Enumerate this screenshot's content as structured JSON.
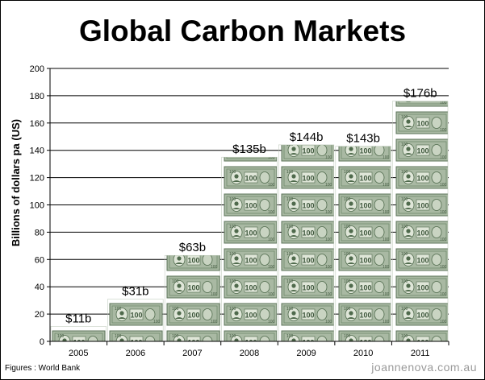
{
  "chart_data": {
    "type": "bar",
    "title": "Global Carbon Markets",
    "ylabel": "Billions of dollars pa (US)",
    "xlabel": "",
    "categories": [
      "2005",
      "2006",
      "2007",
      "2008",
      "2009",
      "2010",
      "2011"
    ],
    "values": [
      11,
      31,
      63,
      135,
      144,
      143,
      176
    ],
    "data_labels": [
      "$11b",
      "$31b",
      "$63b",
      "$135b",
      "$144b",
      "$143b",
      "$176b"
    ],
    "ylim": [
      0,
      200
    ],
    "yticks": [
      0,
      20,
      40,
      60,
      80,
      100,
      120,
      140,
      160,
      180,
      200
    ],
    "grid": true,
    "bar_fill": "pictograph of $100 bills",
    "colors": {
      "bill": "#a9b9a3",
      "bill_dark": "#4f6a4c",
      "bill_face": "#dfe6d8"
    }
  },
  "source": "Figures : World Bank",
  "watermark": "joannenova.com.au"
}
